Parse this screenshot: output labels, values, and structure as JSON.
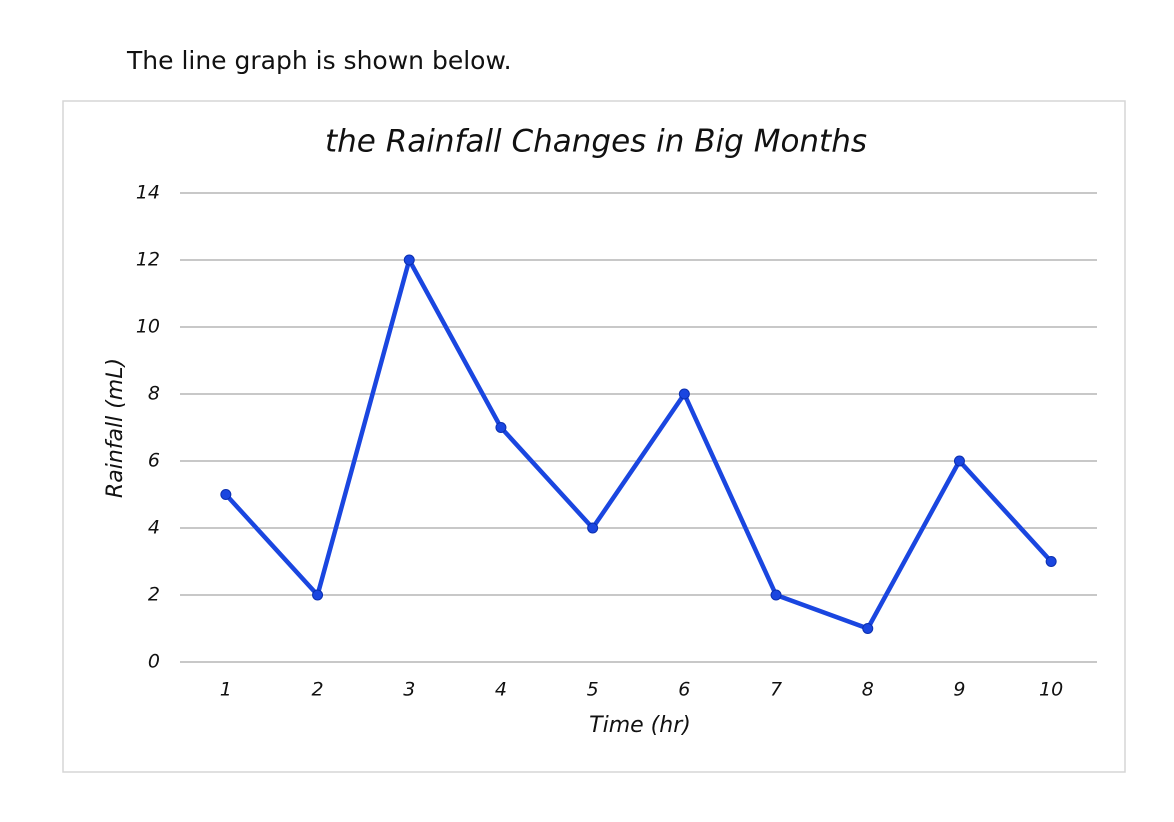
{
  "intro": "The line graph is shown below.",
  "chart_data": {
    "type": "line",
    "title": "the Rainfall Changes in Big Months",
    "x_label": "Time (hr)",
    "y_label": "Rainfall (mL)",
    "categories": [
      "1",
      "2",
      "3",
      "4",
      "5",
      "6",
      "7",
      "8",
      "9",
      "10"
    ],
    "series": [
      {
        "name": "Rainfall",
        "color": "#1a46e0",
        "values": [
          5,
          2,
          12,
          7,
          4,
          8,
          2,
          1,
          6,
          3
        ]
      }
    ],
    "ylim": [
      0,
      14
    ],
    "yticks": [
      0,
      2,
      4,
      6,
      8,
      10,
      12,
      14
    ],
    "grid": true,
    "legend": false
  }
}
